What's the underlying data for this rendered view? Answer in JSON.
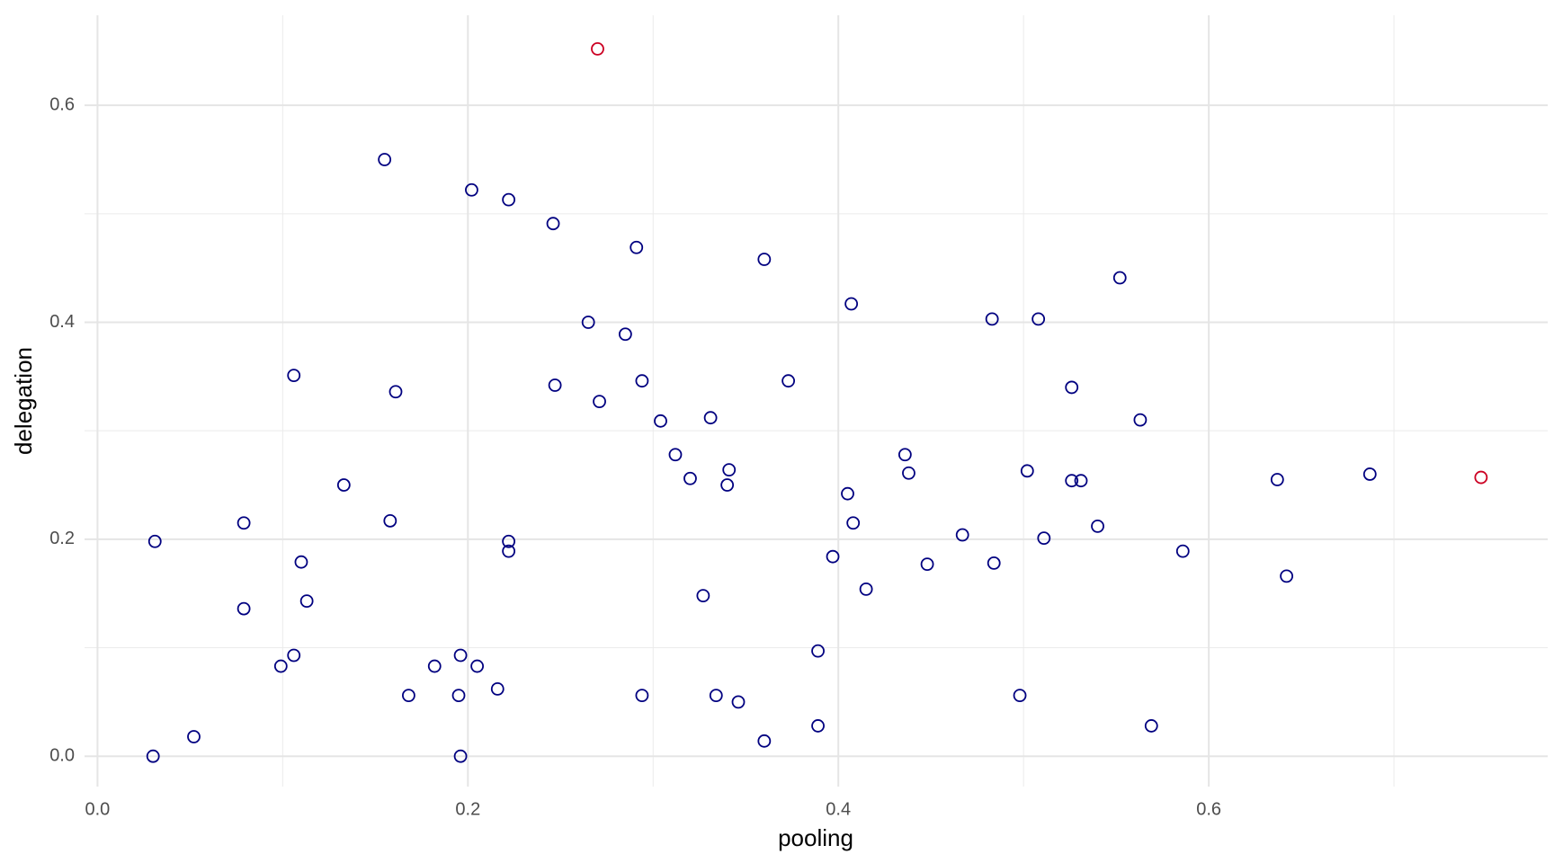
{
  "chart_data": {
    "type": "scatter",
    "x_label": "pooling",
    "y_label": "delegation",
    "xlim": [
      -0.007,
      0.783
    ],
    "ylim": [
      -0.028,
      0.683
    ],
    "xticks": [
      {
        "value": 0,
        "label": "0.0"
      },
      0.2,
      0.4,
      0.6
    ],
    "yticks": [
      {
        "value": 0,
        "label": "0.0"
      },
      0.2,
      0.4,
      0.6
    ],
    "xminor": [
      0.1,
      0.3,
      0.5,
      0.7
    ],
    "yminor": [
      0.1,
      0.3,
      0.5
    ],
    "grid": true,
    "series": [
      {
        "color": "#000080",
        "x": [
          0.155,
          0.202,
          0.222,
          0.246,
          0.291,
          0.36,
          0.552,
          0.407,
          0.483,
          0.508,
          0.265,
          0.285,
          0.106,
          0.247,
          0.294,
          0.373,
          0.526,
          0.161,
          0.271,
          0.304,
          0.331,
          0.563,
          0.312,
          0.436,
          0.341,
          0.438,
          0.502,
          0.687,
          0.637,
          0.32,
          0.526,
          0.531,
          0.133,
          0.34,
          0.405,
          0.079,
          0.158,
          0.408,
          0.54,
          0.467,
          0.511,
          0.031,
          0.222,
          0.222,
          0.586,
          0.397,
          0.448,
          0.484,
          0.11,
          0.642,
          0.415,
          0.113,
          0.327,
          0.079,
          0.389,
          0.106,
          0.196,
          0.099,
          0.182,
          0.205,
          0.216,
          0.168,
          0.195,
          0.294,
          0.334,
          0.498,
          0.346,
          0.389,
          0.569,
          0.052,
          0.36,
          0.03,
          0.196
        ],
        "values": [
          0.55,
          0.522,
          0.513,
          0.491,
          0.469,
          0.458,
          0.441,
          0.417,
          0.403,
          0.403,
          0.4,
          0.389,
          0.351,
          0.342,
          0.346,
          0.346,
          0.34,
          0.336,
          0.327,
          0.309,
          0.312,
          0.31,
          0.278,
          0.278,
          0.264,
          0.261,
          0.263,
          0.26,
          0.255,
          0.256,
          0.254,
          0.254,
          0.25,
          0.25,
          0.242,
          0.215,
          0.217,
          0.215,
          0.212,
          0.204,
          0.201,
          0.198,
          0.198,
          0.189,
          0.189,
          0.184,
          0.177,
          0.178,
          0.179,
          0.166,
          0.154,
          0.143,
          0.148,
          0.136,
          0.097,
          0.093,
          0.093,
          0.083,
          0.083,
          0.083,
          0.062,
          0.056,
          0.056,
          0.056,
          0.056,
          0.056,
          0.05,
          0.028,
          0.028,
          0.018,
          0.014,
          0.0,
          0.0
        ]
      },
      {
        "color": "#cc0022",
        "x": [
          0.27,
          0.747
        ],
        "values": [
          0.652,
          0.257
        ]
      }
    ]
  }
}
